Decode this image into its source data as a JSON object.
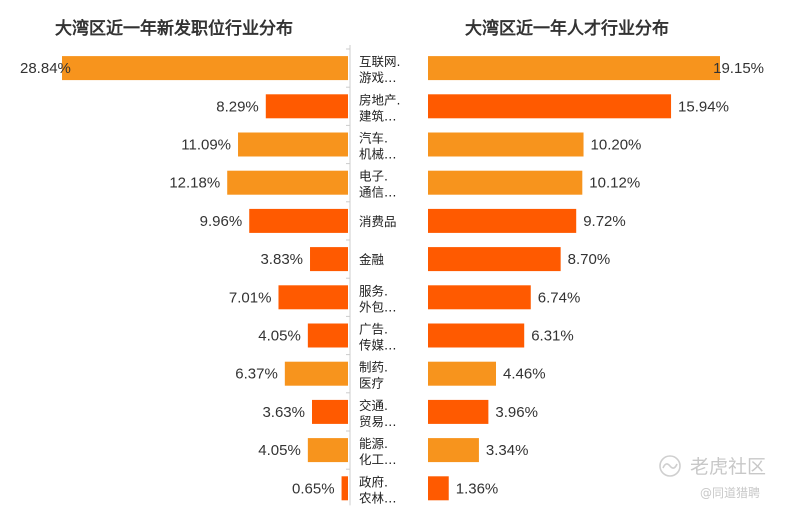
{
  "chart_data": [
    {
      "type": "bar",
      "orientation": "horizontal",
      "direction": "right-to-left",
      "title": "大湾区近一年新发职位行业分布",
      "categories": [
        [
          "互联网.",
          "游戏…"
        ],
        [
          "房地产.",
          "建筑…"
        ],
        [
          "汽车.",
          "机械…"
        ],
        [
          "电子.",
          "通信…"
        ],
        [
          "消费品"
        ],
        [
          "金融"
        ],
        [
          "服务.",
          "外包…"
        ],
        [
          "广告.",
          "传媒…"
        ],
        [
          "制药.",
          "医疗"
        ],
        [
          "交通.",
          "贸易…"
        ],
        [
          "能源.",
          "化工…"
        ],
        [
          "政府.",
          "农林…"
        ]
      ],
      "values": [
        28.84,
        8.29,
        11.09,
        12.18,
        9.96,
        3.83,
        7.01,
        4.05,
        6.37,
        3.63,
        4.05,
        0.65
      ],
      "labels": [
        "28.84%",
        "8.29%",
        "11.09%",
        "12.18%",
        "9.96%",
        "3.83%",
        "7.01%",
        "4.05%",
        "6.37%",
        "3.63%",
        "4.05%",
        "0.65%"
      ],
      "xlim": [
        0,
        28.84
      ],
      "grid": false,
      "legend": "none"
    },
    {
      "type": "bar",
      "orientation": "horizontal",
      "direction": "left-to-right",
      "title": "大湾区近一年人才行业分布",
      "values": [
        19.15,
        15.94,
        10.2,
        10.12,
        9.72,
        8.7,
        6.74,
        6.31,
        4.46,
        3.96,
        3.34,
        1.36
      ],
      "labels": [
        "19.15%",
        "15.94%",
        "10.20%",
        "10.12%",
        "9.72%",
        "8.70%",
        "6.74%",
        "6.31%",
        "4.46%",
        "3.96%",
        "3.34%",
        "1.36%"
      ],
      "xlim": [
        0,
        19.15
      ],
      "grid": false,
      "legend": "none"
    }
  ],
  "colors": {
    "dark_orange": "#ff5a00",
    "light_orange": "#f7941d",
    "axis_line": "#cccccc",
    "text": "#333333"
  },
  "bar_color_keys": {
    "left": [
      "light_orange",
      "dark_orange",
      "light_orange",
      "light_orange",
      "dark_orange",
      "dark_orange",
      "dark_orange",
      "dark_orange",
      "light_orange",
      "dark_orange",
      "light_orange",
      "dark_orange"
    ],
    "right": [
      "light_orange",
      "dark_orange",
      "light_orange",
      "light_orange",
      "dark_orange",
      "dark_orange",
      "dark_orange",
      "dark_orange",
      "light_orange",
      "dark_orange",
      "light_orange",
      "dark_orange"
    ]
  },
  "watermark": {
    "brand": "老虎社区",
    "handle": "@同道猎聘",
    "icon": "tiger-logo-icon"
  }
}
